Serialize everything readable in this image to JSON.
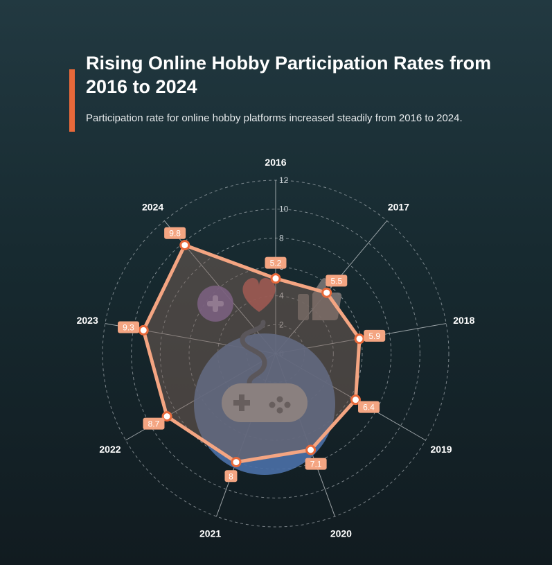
{
  "header": {
    "title": "Rising Online Hobby Participation Rates from 2016 to 2024",
    "subtitle": "Participation rate for online hobby platforms increased steadily from 2016 to 2024."
  },
  "icons": [
    "gamepad-icon",
    "heart-icon",
    "plus-icon",
    "thumbs-up-icon"
  ],
  "colors": {
    "accent": "#e8693a",
    "series_line": "#f4a582",
    "marker_fill": "#ffffff",
    "label_bg": "#f4a582",
    "gamepad_circle": "#4a6fa5",
    "heart": "#c0504d",
    "plus_circle": "#7b5ea7"
  },
  "chart_data": {
    "type": "radar",
    "categories": [
      "2016",
      "2017",
      "2018",
      "2019",
      "2020",
      "2021",
      "2022",
      "2023",
      "2024"
    ],
    "values": [
      5.2,
      5.5,
      5.9,
      6.4,
      7.1,
      8,
      8.7,
      9.3,
      9.8
    ],
    "data_labels": [
      "5.2",
      "5.5",
      "5.9",
      "6.4",
      "7.1",
      "8",
      "8.7",
      "9.3",
      "9.8"
    ],
    "radial_ticks": [
      "0",
      "2",
      "4",
      "6",
      "8",
      "10",
      "12"
    ],
    "rlim": [
      0,
      12
    ],
    "grid": true,
    "legend": "none"
  }
}
